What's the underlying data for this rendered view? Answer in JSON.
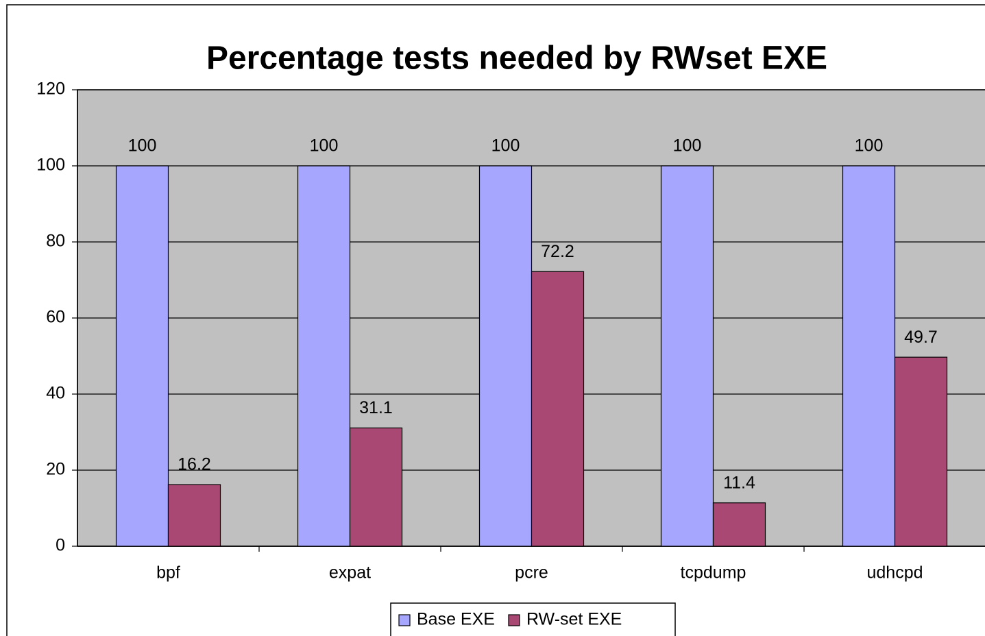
{
  "chart_data": {
    "type": "bar",
    "title": "Percentage tests needed by RWset EXE",
    "categories": [
      "bpf",
      "expat",
      "pcre",
      "tcpdump",
      "udhcpd"
    ],
    "series": [
      {
        "name": "Base EXE",
        "color": "#a6a6ff",
        "values": [
          100,
          100,
          100,
          100,
          100
        ]
      },
      {
        "name": "RW-set EXE",
        "color": "#a94873",
        "values": [
          16.2,
          31.1,
          72.2,
          11.4,
          49.7
        ]
      }
    ],
    "ylim": [
      0,
      120
    ],
    "yticks": [
      0,
      20,
      40,
      60,
      80,
      100,
      120
    ],
    "grid": true,
    "legend": "bottom"
  }
}
